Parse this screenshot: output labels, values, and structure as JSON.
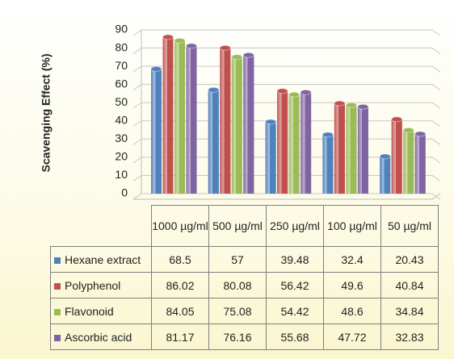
{
  "chart_data": {
    "type": "bar",
    "y_label": "Scavenging Effect (%)",
    "categories": [
      "1000 µg/ml",
      "500 µg/ml",
      "250 µg/ml",
      "100 µg/ml",
      "50 µg/ml"
    ],
    "series": [
      {
        "name": "Hexane extract",
        "color": "#4f81bd",
        "values": [
          68.5,
          57,
          39.48,
          32.4,
          20.43
        ]
      },
      {
        "name": "Polyphenol",
        "color": "#c0504d",
        "values": [
          86.02,
          80.08,
          56.42,
          49.6,
          40.84
        ]
      },
      {
        "name": "Flavonoid",
        "color": "#9bbb59",
        "values": [
          84.05,
          75.08,
          54.42,
          48.6,
          34.84
        ]
      },
      {
        "name": "Ascorbic acid",
        "color": "#8064a2",
        "values": [
          81.17,
          76.16,
          55.68,
          47.72,
          32.83
        ]
      }
    ],
    "ylim": [
      0,
      90
    ],
    "yticks": [
      0,
      10,
      20,
      30,
      40,
      50,
      60,
      70,
      80,
      90
    ],
    "grid": true
  }
}
